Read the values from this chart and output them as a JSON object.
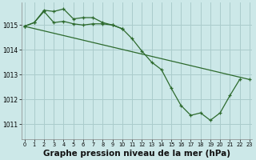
{
  "bg_color": "#cce8e8",
  "grid_color": "#aacccc",
  "line_color": "#2d6a2d",
  "xlabel": "Graphe pression niveau de la mer (hPa)",
  "xlabel_fontsize": 7.5,
  "yticks": [
    1011,
    1012,
    1013,
    1014,
    1015
  ],
  "xticks": [
    0,
    1,
    2,
    3,
    4,
    5,
    6,
    7,
    8,
    9,
    10,
    11,
    12,
    13,
    14,
    15,
    16,
    17,
    18,
    19,
    20,
    21,
    22,
    23
  ],
  "ylim": [
    1010.4,
    1015.9
  ],
  "xlim": [
    -0.3,
    23.3
  ],
  "line1_x": [
    0,
    1,
    2,
    3,
    4,
    5,
    6,
    7,
    8,
    9,
    10,
    11,
    12,
    13,
    14,
    15,
    16,
    17,
    18,
    19,
    20,
    21,
    22
  ],
  "line1_y": [
    1014.95,
    1015.1,
    1015.55,
    1015.1,
    1015.15,
    1015.05,
    1015.0,
    1015.05,
    1015.05,
    1015.0,
    1014.85,
    1014.45,
    1013.95,
    1013.5,
    1013.2,
    1012.45,
    1011.75,
    1011.35,
    1011.45,
    1011.15,
    1011.45,
    1012.15,
    1012.8
  ],
  "line2_x": [
    0,
    23
  ],
  "line2_y": [
    1014.95,
    1012.8
  ],
  "line3_x": [
    0,
    1,
    2,
    3,
    4,
    5,
    6,
    7,
    8,
    9,
    10
  ],
  "line3_y": [
    1014.95,
    1015.1,
    1015.6,
    1015.55,
    1015.65,
    1015.25,
    1015.3,
    1015.3,
    1015.1,
    1015.0,
    1014.85
  ]
}
